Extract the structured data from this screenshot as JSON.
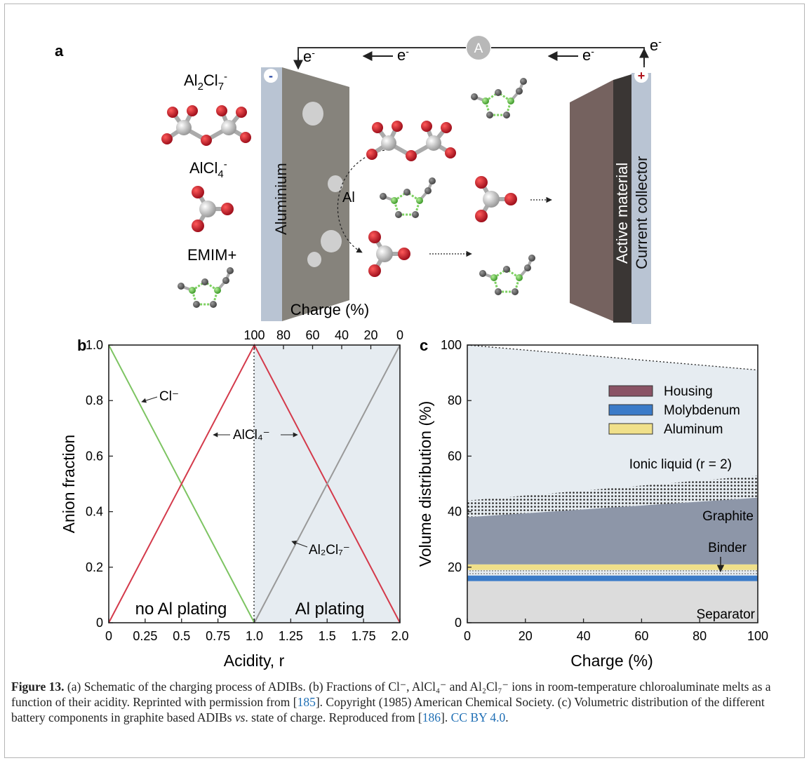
{
  "panel_a": {
    "label": "a",
    "ammeter": "A",
    "electron": "e",
    "electron_sup": "-",
    "minus": "-",
    "plus": "+",
    "al2cl7_label": "Al2Cl7-",
    "alcl4_label": "AlCl4-",
    "emim_label": "EMIM+",
    "aluminium": "Aluminium",
    "al_label": "Al",
    "active_material": "Active material",
    "current_collector": "Current collector"
  },
  "panel_b": {
    "label": "b",
    "top_axis_title": "Charge (%)",
    "region_left": "no Al plating",
    "region_right": "Al plating",
    "cl_label": "Cl⁻",
    "alcl4_label": "AlCl₄⁻",
    "al2cl7_label": "Al₂Cl₇⁻"
  },
  "panel_c": {
    "label": "c",
    "layers": {
      "ionic_liquid": "Ionic liquid (r = 2)",
      "graphite": "Graphite",
      "binder": "Binder",
      "separator": "Separator"
    }
  },
  "chart_data": [
    {
      "type": "line",
      "xlabel": "Acidity, r",
      "ylabel": "Anion fraction",
      "xlim": [
        0,
        2
      ],
      "ylim": [
        0,
        1
      ],
      "x_ticks": [
        "0",
        "0.25",
        "0.5",
        "0.75",
        "1.0",
        "1.25",
        "1.5",
        "1.75",
        "2.0"
      ],
      "y_ticks": [
        "0",
        "0.2",
        "0.4",
        "0.6",
        "0.8",
        "1.0"
      ],
      "top_axis": {
        "label": "Charge (%)",
        "ticks": [
          "100",
          "80",
          "60",
          "40",
          "20",
          "0"
        ],
        "at_x": [
          1.0,
          1.2,
          1.4,
          1.6,
          1.8,
          2.0
        ]
      },
      "series": [
        {
          "name": "Cl⁻",
          "color": "#7dc462",
          "x": [
            0,
            1
          ],
          "y": [
            1,
            0
          ]
        },
        {
          "name": "AlCl₄⁻",
          "color": "#d43a4b",
          "x": [
            0,
            1,
            2
          ],
          "y": [
            0,
            1,
            0
          ]
        },
        {
          "name": "Al₂Cl₇⁻",
          "color": "#999999",
          "x": [
            1,
            2
          ],
          "y": [
            0,
            1
          ]
        }
      ]
    },
    {
      "type": "area",
      "xlabel": "Charge (%)",
      "ylabel": "Volume distribution (%)",
      "xlim": [
        0,
        100
      ],
      "ylim": [
        0,
        100
      ],
      "x_ticks": [
        "0",
        "20",
        "40",
        "60",
        "80",
        "100"
      ],
      "y_ticks": [
        "0",
        "20",
        "40",
        "60",
        "80",
        "100"
      ],
      "legend": {
        "placement": "top-right",
        "entries": [
          {
            "name": "Housing",
            "color": "#8a5365"
          },
          {
            "name": "Molybdenum",
            "color": "#3b7bc8"
          },
          {
            "name": "Aluminum",
            "color": "#f0e08a"
          }
        ]
      },
      "layers": [
        {
          "name": "Separator",
          "lower": [
            0,
            0
          ],
          "upper": [
            15,
            15
          ]
        },
        {
          "name": "Molybdenum",
          "lower": [
            15,
            15
          ],
          "upper": [
            17,
            17
          ]
        },
        {
          "name": "Binder",
          "lower": [
            17,
            17
          ],
          "upper": [
            19,
            19
          ]
        },
        {
          "name": "Aluminum",
          "lower": [
            19,
            19
          ],
          "upper": [
            21,
            21
          ]
        },
        {
          "name": "Graphite",
          "lower": [
            21,
            21
          ],
          "upper": [
            38,
            45
          ]
        },
        {
          "name": "Ionic liquid (r = 2)",
          "lower": [
            38,
            45
          ],
          "upper": [
            44,
            53
          ]
        },
        {
          "name": "Total volume",
          "lower": [
            0,
            0
          ],
          "upper": [
            100,
            91
          ]
        }
      ],
      "layer_x": [
        0,
        100
      ]
    }
  ],
  "caption": {
    "fig_label": "Figure 13.",
    "part1": " (a) Schematic of the charging process of ADIBs. (b) Fractions of Cl⁻, AlCl₄⁻ and Al₂Cl₇⁻ ions in room-temperature chloroaluminate melts as a function of their acidity. Reprinted with permission from [",
    "ref1": "185",
    "part2": "]. Copyright (1985) American Chemical Society. (c) Volumetric distribution of the different battery components in graphite based ADIBs ",
    "vs": "vs",
    "part3": ". state of charge. Reproduced from [",
    "ref2": "186",
    "part4": "]. ",
    "license": "CC BY 4.0",
    "part5": "."
  }
}
